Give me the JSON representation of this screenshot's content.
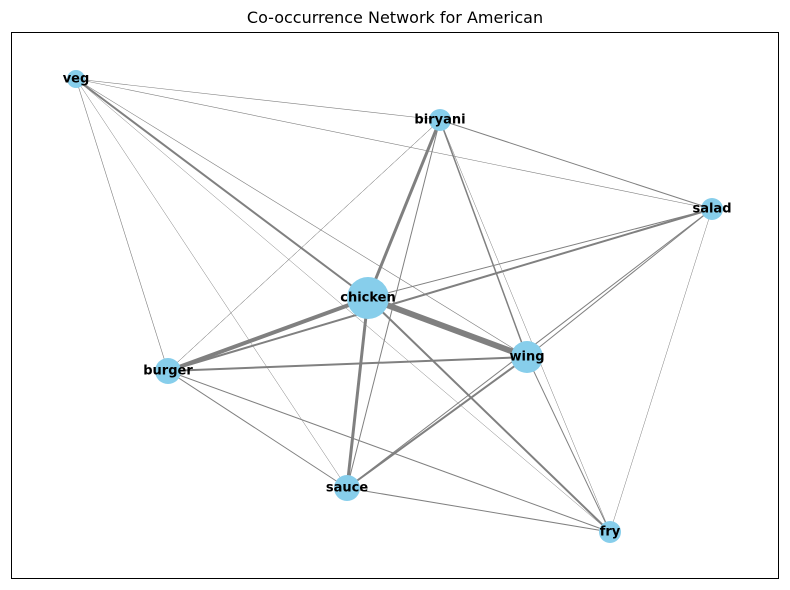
{
  "title": "Co-occurrence Network for American",
  "colors": {
    "node": "#87CEEB",
    "edge": "#808080",
    "label": "#000000"
  },
  "nodes": [
    {
      "id": "chicken",
      "label": "chicken",
      "size": 5
    },
    {
      "id": "wing",
      "label": "wing",
      "size": 3
    },
    {
      "id": "burger",
      "label": "burger",
      "size": 2
    },
    {
      "id": "sauce",
      "label": "sauce",
      "size": 2
    },
    {
      "id": "biryani",
      "label": "biryani",
      "size": 1.5
    },
    {
      "id": "salad",
      "label": "salad",
      "size": 1.5
    },
    {
      "id": "fry",
      "label": "fry",
      "size": 1.5
    },
    {
      "id": "veg",
      "label": "veg",
      "size": 1
    }
  ],
  "edges": [
    {
      "source": "chicken",
      "target": "wing",
      "weight": 6
    },
    {
      "source": "chicken",
      "target": "burger",
      "weight": 4
    },
    {
      "source": "chicken",
      "target": "sauce",
      "weight": 3
    },
    {
      "source": "chicken",
      "target": "biryani",
      "weight": 3
    },
    {
      "source": "burger",
      "target": "salad",
      "weight": 2
    },
    {
      "source": "wing",
      "target": "sauce",
      "weight": 2
    },
    {
      "source": "chicken",
      "target": "veg",
      "weight": 2
    },
    {
      "source": "burger",
      "target": "wing",
      "weight": 2
    },
    {
      "source": "chicken",
      "target": "fry",
      "weight": 2
    },
    {
      "source": "biryani",
      "target": "wing",
      "weight": 1.5
    },
    {
      "source": "chicken",
      "target": "salad",
      "weight": 1
    },
    {
      "source": "wing",
      "target": "salad",
      "weight": 1
    },
    {
      "source": "sauce",
      "target": "salad",
      "weight": 1
    },
    {
      "source": "wing",
      "target": "fry",
      "weight": 1
    },
    {
      "source": "biryani",
      "target": "sauce",
      "weight": 1
    },
    {
      "source": "biryani",
      "target": "salad",
      "weight": 1
    },
    {
      "source": "burger",
      "target": "sauce",
      "weight": 1
    },
    {
      "source": "burger",
      "target": "fry",
      "weight": 1
    },
    {
      "source": "sauce",
      "target": "fry",
      "weight": 1
    },
    {
      "source": "veg",
      "target": "biryani",
      "weight": 0.6
    },
    {
      "source": "veg",
      "target": "salad",
      "weight": 0.6
    },
    {
      "source": "veg",
      "target": "burger",
      "weight": 0.6
    },
    {
      "source": "veg",
      "target": "wing",
      "weight": 0.6
    },
    {
      "source": "veg",
      "target": "sauce",
      "weight": 0.5
    },
    {
      "source": "veg",
      "target": "fry",
      "weight": 0.5
    },
    {
      "source": "biryani",
      "target": "burger",
      "weight": 0.5
    },
    {
      "source": "biryani",
      "target": "fry",
      "weight": 0.5
    },
    {
      "source": "salad",
      "target": "fry",
      "weight": 0.5
    },
    {
      "source": "burger",
      "target": "biryani",
      "weight": 0.5
    }
  ]
}
